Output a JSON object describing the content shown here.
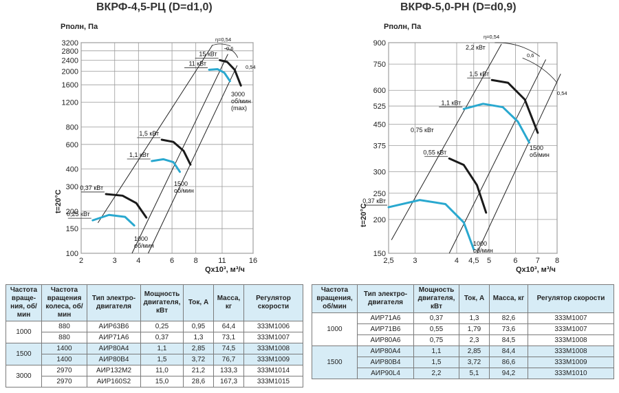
{
  "chart_data": [
    {
      "type": "line",
      "title": "ВКРФ-4,5-РЦ (D=d1,0)",
      "ylabel": "Pполн, Па",
      "xlabel": "Qx10³, м³/ч",
      "temp_label": "t=20°C",
      "x_ticks": [
        "2",
        "3",
        "4",
        "6",
        "8",
        "11",
        "16"
      ],
      "y_ticks": [
        "3200",
        "2800",
        "2400",
        "2000",
        "1600",
        "1200",
        "800",
        "600",
        "400",
        "300",
        "200",
        "150",
        "100"
      ],
      "series": [
        {
          "power": "0,25 кВт",
          "color": "#29a8cf",
          "x": [
            2.3,
            2.8,
            3.4,
            3.8
          ],
          "y": [
            172,
            188,
            182,
            158
          ]
        },
        {
          "power": "0,37 кВт",
          "color": "#1a1a1a",
          "x": [
            2.7,
            3.3,
            3.9,
            4.4
          ],
          "y": [
            265,
            258,
            228,
            180
          ]
        },
        {
          "power": "1,1 кВт",
          "color": "#29a8cf",
          "x": [
            4.7,
            5.4,
            6.1,
            6.6
          ],
          "y": [
            456,
            470,
            448,
            382
          ]
        },
        {
          "power": "1,5 кВт",
          "color": "#1a1a1a",
          "x": [
            5.3,
            6.1,
            6.9,
            7.5
          ],
          "y": [
            648,
            625,
            540,
            430
          ]
        },
        {
          "power": "11 кВт",
          "color": "#29a8cf",
          "x": [
            9.4,
            10.4,
            11.3,
            12.1
          ],
          "y": [
            2050,
            2070,
            1950,
            1700
          ]
        },
        {
          "power": "15 кВт",
          "color": "#1a1a1a",
          "x": [
            10.7,
            11.7,
            12.8,
            13.8
          ],
          "y": [
            2400,
            2330,
            2050,
            1580
          ]
        }
      ],
      "speed_labels": [
        "1000 об/мин",
        "1500 об/мин",
        "3000 об/мин (max)"
      ],
      "efficiency_labels": [
        "η=0,54",
        "0,6",
        "0,54"
      ]
    },
    {
      "type": "line",
      "title": "ВКРФ-5,0-РН (D=d0,9)",
      "ylabel": "Pполн, Па",
      "xlabel": "Qx10³, м³/ч",
      "temp_label": "t=20°C",
      "x_ticks": [
        "2,5",
        "3",
        "4",
        "4,5",
        "5",
        "6",
        "7",
        "8"
      ],
      "y_ticks": [
        "900",
        "750",
        "600",
        "525",
        "450",
        "375",
        "300",
        "250",
        "200",
        "150"
      ],
      "series": [
        {
          "power": "0,37 кВт",
          "color": "#29a8cf",
          "x": [
            2.5,
            3.1,
            3.7,
            4.2,
            4.5
          ],
          "y": [
            222,
            236,
            228,
            195,
            155
          ]
        },
        {
          "power": "0,55 кВт",
          "color": "#1a1a1a",
          "x": [
            3.8,
            4.2,
            4.6,
            4.9
          ],
          "y": [
            336,
            318,
            268,
            212
          ]
        },
        {
          "power": "1,1 кВт",
          "color": "#29a8cf",
          "x": [
            4.2,
            4.8,
            5.5,
            6.1,
            6.6
          ],
          "y": [
            512,
            535,
            520,
            460,
            385
          ]
        },
        {
          "power": "1,5 кВт",
          "color": "#1a1a1a",
          "x": [
            5.1,
            5.7,
            6.4,
            7.0
          ],
          "y": [
            655,
            640,
            555,
            418
          ]
        }
      ],
      "extra_power_labels": [
        "0,75 кВт",
        "2,2 кВт"
      ],
      "speed_labels": [
        "1000 об/мин",
        "1500 об/мин"
      ],
      "efficiency_labels": [
        "η=0,54",
        "0,6",
        "0,54"
      ]
    }
  ],
  "table_left": {
    "headers": [
      "Частота враще-ния, об/ мин",
      "Частота вращения колеса, об/ мин",
      "Тип электро-двигателя",
      "Мощность двигателя, кВт",
      "Ток, А",
      "Масса, кг",
      "Регулятор скорости"
    ],
    "groups": [
      {
        "freq": "1000",
        "rows": [
          [
            "880",
            "АИР63В6",
            "0,25",
            "0,95",
            "64,4",
            "333М1006"
          ],
          [
            "880",
            "АИР71А6",
            "0,37",
            "1,3",
            "73,1",
            "333М1007"
          ]
        ]
      },
      {
        "freq": "1500",
        "rows": [
          [
            "1400",
            "АИР80А4",
            "1,1",
            "2,85",
            "74,5",
            "333М1008"
          ],
          [
            "1400",
            "АИР80В4",
            "1,5",
            "3,72",
            "76,7",
            "333М1009"
          ]
        ]
      },
      {
        "freq": "3000",
        "rows": [
          [
            "2970",
            "АИР132М2",
            "11,0",
            "21,2",
            "133,3",
            "333М1014"
          ],
          [
            "2970",
            "АИР160S2",
            "15,0",
            "28,6",
            "167,3",
            "333М1015"
          ]
        ]
      }
    ]
  },
  "table_right": {
    "headers": [
      "Частота вращения, об/мин",
      "Тип электро-двигателя",
      "Мощность двигателя, кВт",
      "Ток, А",
      "Масса, кг",
      "Регулятор скорости"
    ],
    "groups": [
      {
        "freq": "1000",
        "rows": [
          [
            "АИР71А6",
            "0,37",
            "1,3",
            "82,6",
            "333М1007"
          ],
          [
            "АИР71В6",
            "0,55",
            "1,79",
            "73,6",
            "333М1007"
          ],
          [
            "АИР80А6",
            "0,75",
            "2,3",
            "84,5",
            "333М1008"
          ]
        ]
      },
      {
        "freq": "1500",
        "rows": [
          [
            "АИР80А4",
            "1,1",
            "2,85",
            "84,4",
            "333М1008"
          ],
          [
            "АИР80В4",
            "1,5",
            "3,72",
            "86,6",
            "333М1009"
          ],
          [
            "АИР90L4",
            "2,2",
            "5,1",
            "94,2",
            "333М1010"
          ]
        ]
      }
    ]
  }
}
